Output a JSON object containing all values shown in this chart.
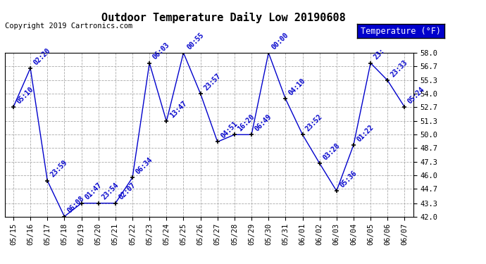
{
  "title": "Outdoor Temperature Daily Low 20190608",
  "copyright_text": "Copyright 2019 Cartronics.com",
  "legend_label": "Temperature (°F)",
  "line_color": "#0000cc",
  "marker_color": "#000000",
  "background_color": "#ffffff",
  "grid_color": "#aaaaaa",
  "points": [
    {
      "date": "05/15",
      "time": "05:10",
      "temp": 52.7
    },
    {
      "date": "05/16",
      "time": "02:20",
      "temp": 56.5
    },
    {
      "date": "05/17",
      "time": "23:59",
      "temp": 45.5
    },
    {
      "date": "05/18",
      "time": "06:08",
      "temp": 42.0
    },
    {
      "date": "05/19",
      "time": "01:47",
      "temp": 43.3
    },
    {
      "date": "05/20",
      "time": "23:54",
      "temp": 43.3
    },
    {
      "date": "05/21",
      "time": "02:07",
      "temp": 43.3
    },
    {
      "date": "05/22",
      "time": "06:34",
      "temp": 45.8
    },
    {
      "date": "05/23",
      "time": "06:03",
      "temp": 57.0
    },
    {
      "date": "05/24",
      "time": "13:47",
      "temp": 51.3
    },
    {
      "date": "05/25",
      "time": "00:55",
      "temp": 58.0
    },
    {
      "date": "05/26",
      "time": "23:57",
      "temp": 54.0
    },
    {
      "date": "05/27",
      "time": "04:51",
      "temp": 49.3
    },
    {
      "date": "05/28",
      "time": "16:20",
      "temp": 50.0
    },
    {
      "date": "05/29",
      "time": "06:49",
      "temp": 50.0
    },
    {
      "date": "05/30",
      "time": "00:00",
      "temp": 58.0
    },
    {
      "date": "05/31",
      "time": "04:10",
      "temp": 53.5
    },
    {
      "date": "06/01",
      "time": "23:52",
      "temp": 50.0
    },
    {
      "date": "06/02",
      "time": "03:28",
      "temp": 47.2
    },
    {
      "date": "06/03",
      "time": "05:36",
      "temp": 44.5
    },
    {
      "date": "06/04",
      "time": "01:22",
      "temp": 49.0
    },
    {
      "date": "06/05",
      "time": "23:",
      "temp": 57.0
    },
    {
      "date": "06/06",
      "time": "23:33",
      "temp": 55.3
    },
    {
      "date": "06/07",
      "time": "05:24",
      "temp": 52.7
    }
  ],
  "ylim": [
    42.0,
    58.0
  ],
  "yticks": [
    42.0,
    43.3,
    44.7,
    46.0,
    47.3,
    48.7,
    50.0,
    51.3,
    52.7,
    54.0,
    55.3,
    56.7,
    58.0
  ],
  "label_color": "#0000cc",
  "label_fontsize": 7.0,
  "title_fontsize": 11,
  "copyright_fontsize": 7.5,
  "tick_fontsize": 7.5,
  "legend_fontsize": 8.5
}
